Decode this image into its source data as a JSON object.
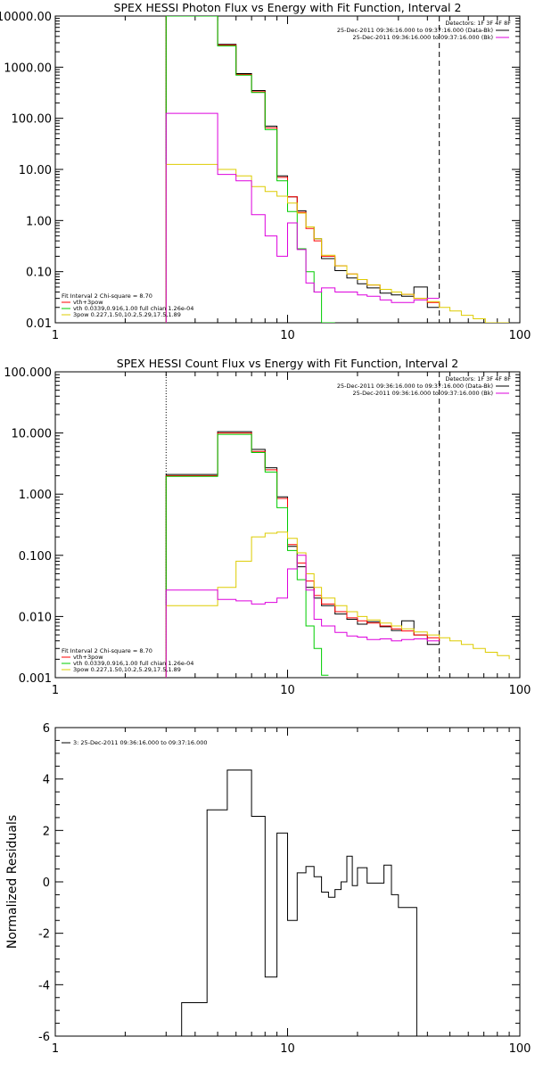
{
  "panels": [
    {
      "title": "SPEX HESSI Photon Flux vs Energy with Fit Function, Interval 2",
      "legend_right_title": "Detectors: 1F 3F 4F 8F",
      "legend_right": [
        {
          "text": "25-Dec-2011 09:36:16.000 to 09:37:16.000 (Data-Bk)",
          "color": "#000000"
        },
        {
          "text": "25-Dec-2011 09:36:16.000 to 09:37:16.000 (Bk)",
          "color": "#dd00dd"
        }
      ],
      "legend_left": [
        {
          "text": "Fit Interval 2   Chi-square = 8.70",
          "color": null
        },
        {
          "text": "vth+3pow",
          "color": "#ff0000"
        },
        {
          "text": "vth 0.0339,0.916,1.00  full chian 1.26e-04",
          "color": "#00cc00"
        },
        {
          "text": "3pow 0.227,1.50,10.2,5.29,17.5,1.89",
          "color": "#ddcc00"
        }
      ],
      "x_ticks": [
        "1",
        "10",
        "100"
      ],
      "y_ticks": [
        "0.01",
        "0.10",
        "1.00",
        "10.00",
        "100.00",
        "1000.00",
        "10000.00"
      ]
    },
    {
      "title": "SPEX HESSI Count Flux vs Energy with Fit Function, Interval 2",
      "legend_right_title": "Detectors: 1F 3F 4F 8F",
      "legend_right": [
        {
          "text": "25-Dec-2011 09:36:16.000 to 09:37:16.000 (Data-Bk)",
          "color": "#000000"
        },
        {
          "text": "25-Dec-2011 09:36:16.000 to 09:37:16.000 (Bk)",
          "color": "#dd00dd"
        }
      ],
      "legend_left": [
        {
          "text": "Fit Interval 2   Chi-square = 8.70",
          "color": null
        },
        {
          "text": "vth+3pow",
          "color": "#ff0000"
        },
        {
          "text": "vth 0.0339,0.916,1.00  full chian 1.26e-04",
          "color": "#00cc00"
        },
        {
          "text": "3pow 0.227,1.50,10.2,5.29,17.5,1.89",
          "color": "#ddcc00"
        }
      ],
      "x_ticks": [
        "1",
        "10",
        "100"
      ],
      "y_ticks": [
        "0.001",
        "0.010",
        "0.100",
        "1.000",
        "10.000",
        "100.000"
      ]
    },
    {
      "title": "",
      "ylabel": "Normalized Residuals",
      "legend_left": [
        {
          "text": "3: 25-Dec-2011 09:36:16.000 to 09:37:16.000",
          "color": "#000000"
        }
      ],
      "x_ticks": [
        "1",
        "10",
        "100"
      ],
      "y_ticks": [
        "6",
        "4",
        "2",
        "0",
        "-2",
        "-4",
        "-6"
      ]
    }
  ],
  "chart_data": [
    {
      "type": "line",
      "title": "SPEX HESSI Photon Flux vs Energy with Fit Function, Interval 2",
      "x_scale": "log",
      "y_scale": "log",
      "xlim": [
        1,
        100
      ],
      "ylim": [
        0.01,
        10000
      ],
      "vlines": [
        {
          "x": 3.0,
          "style": "dotted",
          "color": "#ddaa00"
        },
        {
          "x": 45,
          "style": "dashed",
          "color": "#000000"
        }
      ],
      "series": [
        {
          "name": "25-Dec-2011 09:36:16.000 to 09:37:16.000 (Data-Bk)",
          "color": "#000000",
          "x": [
            3,
            4,
            5,
            6,
            7,
            8,
            9,
            10,
            11,
            12,
            13,
            14,
            16,
            18,
            20,
            22,
            25,
            28,
            31,
            35,
            40,
            45
          ],
          "y": [
            10000,
            10000,
            2800,
            750,
            350,
            70,
            7.5,
            2.9,
            1.55,
            0.75,
            0.44,
            0.18,
            0.105,
            0.075,
            0.058,
            0.048,
            0.038,
            0.035,
            0.033,
            0.05,
            0.02,
            0.02
          ]
        },
        {
          "name": "vth+3pow",
          "color": "#ff0000",
          "x": [
            3,
            4,
            5,
            6,
            7,
            8,
            9,
            10,
            11,
            12,
            13,
            14,
            16,
            18,
            20,
            22,
            25,
            28,
            31,
            35,
            40,
            45
          ],
          "y": [
            10000,
            10000,
            2700,
            720,
            330,
            65,
            7.0,
            2.9,
            1.45,
            0.7,
            0.4,
            0.2,
            0.13,
            0.09,
            0.07,
            0.055,
            0.045,
            0.04,
            0.036,
            0.03,
            0.025,
            0.02
          ]
        },
        {
          "name": "vth",
          "color": "#00cc00",
          "x": [
            3,
            4,
            5,
            6,
            7,
            8,
            9,
            10,
            11,
            12,
            13,
            14,
            16
          ],
          "y": [
            10000,
            10000,
            2600,
            700,
            320,
            60,
            6.0,
            1.5,
            0.28,
            0.1,
            0.04,
            0.01,
            0.01
          ]
        },
        {
          "name": "3pow",
          "color": "#ddcc00",
          "x": [
            3,
            4,
            5,
            6,
            7,
            8,
            9,
            10,
            11,
            12,
            13,
            14,
            16,
            18,
            20,
            22,
            25,
            28,
            31,
            35,
            40,
            45,
            50,
            56,
            63,
            71,
            80,
            90
          ],
          "y": [
            12.5,
            12.5,
            10,
            7.5,
            4.6,
            3.7,
            3.0,
            2.2,
            1.4,
            0.75,
            0.44,
            0.21,
            0.13,
            0.09,
            0.07,
            0.055,
            0.045,
            0.04,
            0.036,
            0.03,
            0.026,
            0.02,
            0.017,
            0.014,
            0.012,
            0.01,
            0.0095,
            0.0095
          ]
        },
        {
          "name": "25-Dec-2011 09:36:16.000 to 09:37:16.000 (Bk)",
          "color": "#dd00dd",
          "x": [
            3,
            4,
            5,
            6,
            7,
            8,
            9,
            10,
            11,
            12,
            13,
            14,
            16,
            18,
            20,
            22,
            25,
            28,
            31,
            35,
            40,
            45
          ],
          "y": [
            125,
            125,
            8,
            6,
            1.3,
            0.5,
            0.2,
            0.9,
            0.27,
            0.06,
            0.04,
            0.048,
            0.04,
            0.04,
            0.035,
            0.033,
            0.028,
            0.025,
            0.025,
            0.028,
            0.03,
            0.03
          ]
        }
      ]
    },
    {
      "type": "line",
      "title": "SPEX HESSI Count Flux vs Energy with Fit Function, Interval 2",
      "x_scale": "log",
      "y_scale": "log",
      "xlim": [
        1,
        100
      ],
      "ylim": [
        0.001,
        100
      ],
      "vlines": [
        {
          "x": 3.0,
          "style": "dotted",
          "color": "#000000"
        },
        {
          "x": 45,
          "style": "dashed",
          "color": "#000000"
        }
      ],
      "series": [
        {
          "name": "25-Dec-2011 09:36:16.000 to 09:37:16.000 (Data-Bk)",
          "color": "#000000",
          "x": [
            3,
            4,
            5,
            6,
            7,
            8,
            9,
            10,
            11,
            12,
            13,
            14,
            16,
            18,
            20,
            22,
            25,
            28,
            31,
            35,
            40,
            45
          ],
          "y": [
            2.1,
            2.1,
            10.5,
            10.5,
            5.4,
            2.7,
            0.9,
            0.14,
            0.065,
            0.03,
            0.02,
            0.015,
            0.011,
            0.009,
            0.0075,
            0.0082,
            0.0068,
            0.0059,
            0.0085,
            0.005,
            0.0035,
            0.0035
          ]
        },
        {
          "name": "vth+3pow",
          "color": "#ff0000",
          "x": [
            3,
            4,
            5,
            6,
            7,
            8,
            9,
            10,
            11,
            12,
            13,
            14,
            16,
            18,
            20,
            22,
            25,
            28,
            31,
            35,
            40,
            45
          ],
          "y": [
            2.0,
            2.0,
            10,
            10,
            5.0,
            2.5,
            0.85,
            0.15,
            0.075,
            0.038,
            0.022,
            0.016,
            0.012,
            0.0095,
            0.0085,
            0.0078,
            0.007,
            0.0063,
            0.0058,
            0.005,
            0.0045,
            0.004
          ]
        },
        {
          "name": "vth",
          "color": "#00cc00",
          "x": [
            3,
            4,
            5,
            6,
            7,
            8,
            9,
            10,
            11,
            12,
            13,
            14,
            15
          ],
          "y": [
            1.95,
            1.95,
            9.5,
            9.5,
            4.8,
            2.3,
            0.6,
            0.12,
            0.04,
            0.007,
            0.003,
            0.0011,
            0.0011
          ]
        },
        {
          "name": "3pow",
          "color": "#ddcc00",
          "x": [
            3,
            4,
            5,
            6,
            7,
            8,
            9,
            10,
            11,
            12,
            13,
            14,
            16,
            18,
            20,
            22,
            25,
            28,
            31,
            35,
            40,
            45,
            50,
            56,
            63,
            71,
            80,
            90
          ],
          "y": [
            0.015,
            0.015,
            0.03,
            0.08,
            0.2,
            0.23,
            0.24,
            0.19,
            0.11,
            0.05,
            0.03,
            0.02,
            0.015,
            0.012,
            0.01,
            0.0088,
            0.0078,
            0.007,
            0.0063,
            0.0056,
            0.005,
            0.0045,
            0.004,
            0.0035,
            0.003,
            0.0026,
            0.0023,
            0.002
          ]
        },
        {
          "name": "25-Dec-2011 09:36:16.000 to 09:37:16.000 (Bk)",
          "color": "#dd00dd",
          "x": [
            3,
            4,
            5,
            6,
            7,
            8,
            9,
            10,
            11,
            12,
            13,
            14,
            16,
            18,
            20,
            22,
            25,
            28,
            31,
            35,
            40,
            45
          ],
          "y": [
            0.027,
            0.027,
            0.019,
            0.018,
            0.016,
            0.017,
            0.02,
            0.06,
            0.1,
            0.027,
            0.009,
            0.007,
            0.0055,
            0.0048,
            0.0046,
            0.0042,
            0.0043,
            0.004,
            0.0042,
            0.0043,
            0.004,
            0.004
          ]
        }
      ]
    },
    {
      "type": "line",
      "title": "",
      "ylabel": "Normalized Residuals",
      "x_scale": "log",
      "y_scale": "linear",
      "xlim": [
        1,
        100
      ],
      "ylim": [
        -6,
        6
      ],
      "series": [
        {
          "name": "3: 25-Dec-2011 09:36:16.000 to 09:37:16.000",
          "color": "#000000",
          "x": [
            3,
            3.5,
            4.5,
            5.5,
            7,
            8,
            9,
            10,
            11,
            12,
            13,
            14,
            15,
            16,
            17,
            18,
            19,
            20,
            22,
            24,
            26,
            28,
            30,
            33,
            36,
            40,
            44
          ],
          "y": [
            -6,
            -4.7,
            2.8,
            4.35,
            2.55,
            -3.7,
            1.9,
            -1.5,
            0.35,
            0.6,
            0.2,
            -0.4,
            -0.6,
            -0.3,
            0.0,
            1.0,
            -0.15,
            0.55,
            -0.05,
            -0.05,
            0.65,
            -0.5,
            -1.0,
            -1.0,
            -6,
            -6,
            -6
          ]
        }
      ]
    }
  ]
}
